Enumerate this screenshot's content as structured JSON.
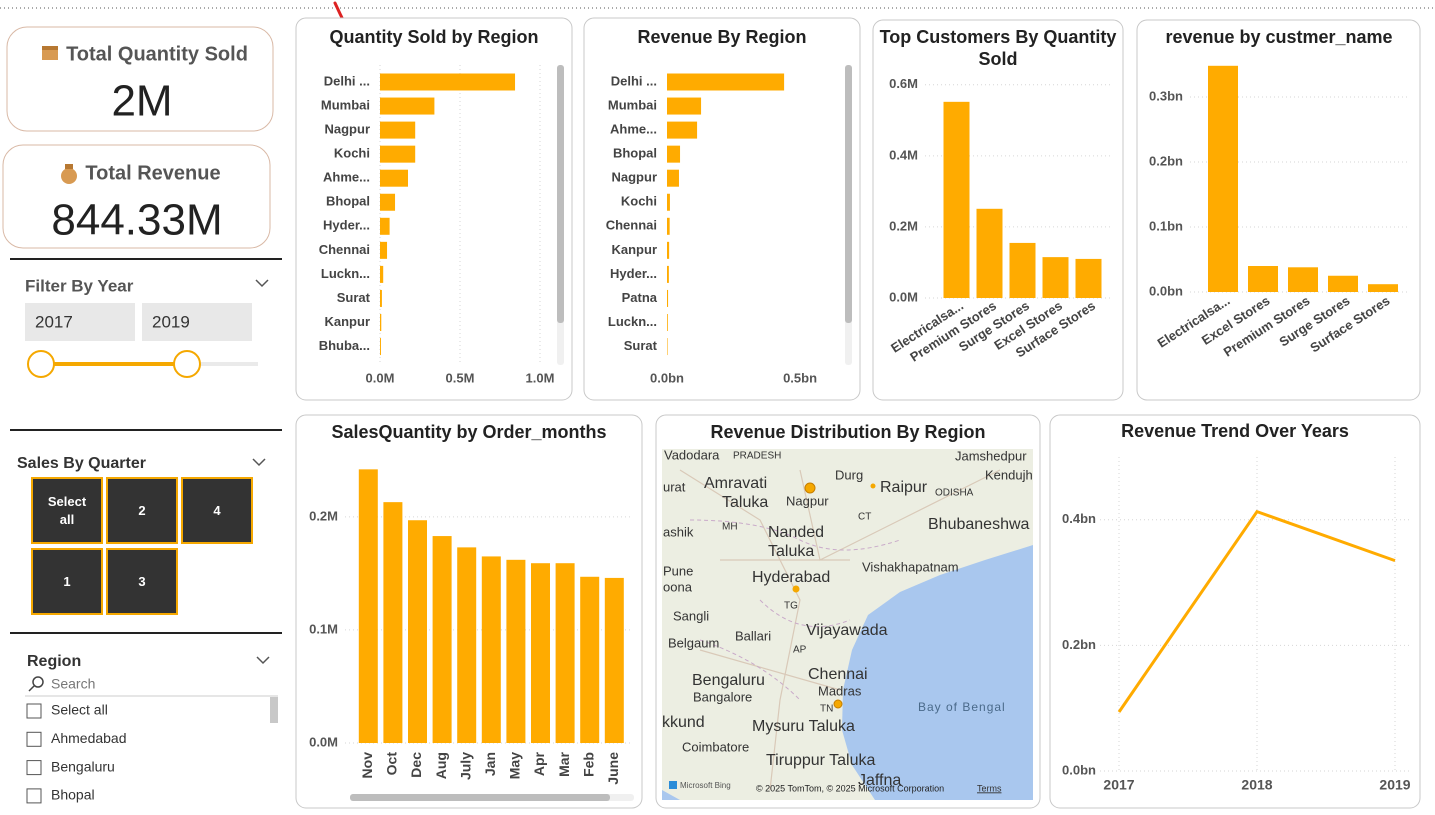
{
  "cards": [
    {
      "title": "Total Quantity Sold",
      "value": "2M"
    },
    {
      "title": "Total Revenue",
      "value": "844.33M"
    }
  ],
  "year_filter": {
    "title": "Filter By Year",
    "from": "2017",
    "to": "2019"
  },
  "quarter_slicer": {
    "title": "Sales By Quarter",
    "options": [
      "Select all",
      "2",
      "4",
      "1",
      "3"
    ]
  },
  "region_slicer": {
    "title": "Region",
    "search_placeholder": "Search",
    "options": [
      "Select all",
      "Ahmedabad",
      "Bengaluru",
      "Bhopal"
    ]
  },
  "map": {
    "title": "Revenue Distribution By Region",
    "labels": [
      "Vadodara",
      "PRADESH",
      "Durg",
      "Jamshedpur",
      "Kendujh",
      "Amravati",
      "Taluka",
      "Nagpur",
      "Raipur",
      "ODISHA",
      "urat",
      "MH",
      "Nanded",
      "Taluka",
      "CT",
      "Bhubaneshwa",
      "ashik",
      "Vishakhapatnam",
      "Pune",
      "Hyderabad",
      "oona",
      "TG",
      "Sangli",
      "Vijayawada",
      "Belgaum",
      "Ballari",
      "AP",
      "Chennai",
      "Madras",
      "Bengaluru",
      "Bangalore",
      "TN",
      "Bay of Bengal",
      "kkund",
      "Mysuru Taluka",
      "Coimbatore",
      "Tiruppur Taluka",
      "Jaffna"
    ],
    "provider": "Microsoft Bing",
    "attribution": "© 2025 TomTom, © 2025 Microsoft Corporation",
    "terms": "Terms"
  },
  "chart_data": [
    {
      "type": "bar",
      "orientation": "horizontal",
      "title": "Quantity Sold by Region",
      "color": "#ffab00",
      "grid": true,
      "categories": [
        "Delhi ...",
        "Mumbai",
        "Nagpur",
        "Kochi",
        "Ahme...",
        "Bhopal",
        "Hyder...",
        "Chennai",
        "Luckn...",
        "Surat",
        "Kanpur",
        "Bhuba..."
      ],
      "values": [
        0.844,
        0.34,
        0.22,
        0.22,
        0.175,
        0.094,
        0.06,
        0.044,
        0.02,
        0.012,
        0.008,
        0.006
      ],
      "xlim": [
        0,
        1.05
      ],
      "xticks": [
        {
          "value": 0,
          "label": "0.0M"
        },
        {
          "value": 0.5,
          "label": "0.5M"
        },
        {
          "value": 1,
          "label": "1.0M"
        }
      ]
    },
    {
      "type": "bar",
      "orientation": "horizontal",
      "title": "Revenue By Region",
      "color": "#ffab00",
      "grid": false,
      "categories": [
        "Delhi ...",
        "Mumbai",
        "Ahme...",
        "Bhopal",
        "Nagpur",
        "Kochi",
        "Chennai",
        "Kanpur",
        "Hyder...",
        "Patna",
        "Luckn...",
        "Surat"
      ],
      "values": [
        0.44,
        0.128,
        0.113,
        0.049,
        0.045,
        0.011,
        0.01,
        0.008,
        0.007,
        0.004,
        0.003,
        0.002
      ],
      "xlim": [
        0,
        0.65
      ],
      "xticks": [
        {
          "value": 0,
          "label": "0.0bn"
        },
        {
          "value": 0.5,
          "label": "0.5bn"
        }
      ]
    },
    {
      "type": "bar",
      "orientation": "vertical",
      "title": "Top Customers By Quantity Sold",
      "color": "#ffab00",
      "grid": true,
      "categories": [
        "Electricalsa...",
        "Premium Stores",
        "Surge Stores",
        "Excel Stores",
        "Surface Stores"
      ],
      "values": [
        0.552,
        0.251,
        0.155,
        0.115,
        0.11
      ],
      "ylim": [
        0,
        0.65
      ],
      "yticks": [
        {
          "value": 0,
          "label": "0.0M"
        },
        {
          "value": 0.2,
          "label": "0.2M"
        },
        {
          "value": 0.4,
          "label": "0.4M"
        },
        {
          "value": 0.6,
          "label": "0.6M"
        }
      ]
    },
    {
      "type": "bar",
      "orientation": "vertical",
      "title": "revenue by custmer_name",
      "color": "#ffab00",
      "grid": true,
      "categories": [
        "Electricalsa...",
        "Excel Stores",
        "Premium Stores",
        "Surge Stores",
        "Surface Stores"
      ],
      "values": [
        0.348,
        0.04,
        0.038,
        0.025,
        0.012
      ],
      "ylim": [
        0,
        0.36
      ],
      "yticks": [
        {
          "value": 0,
          "label": "0.0bn"
        },
        {
          "value": 0.1,
          "label": "0.1bn"
        },
        {
          "value": 0.2,
          "label": "0.2bn"
        },
        {
          "value": 0.3,
          "label": "0.3bn"
        }
      ]
    },
    {
      "type": "bar",
      "orientation": "vertical",
      "title": "SalesQuantity by Order_months",
      "color": "#ffab00",
      "grid": true,
      "categories": [
        "Nov",
        "Oct",
        "Dec",
        "Aug",
        "July",
        "Jan",
        "May",
        "Apr",
        "Mar",
        "Feb",
        "June"
      ],
      "values": [
        0.242,
        0.213,
        0.197,
        0.183,
        0.173,
        0.165,
        0.162,
        0.159,
        0.159,
        0.147,
        0.146
      ],
      "ylim": [
        0,
        0.26
      ],
      "yticks": [
        {
          "value": 0,
          "label": "0.0M"
        },
        {
          "value": 0.1,
          "label": "0.1M"
        },
        {
          "value": 0.2,
          "label": "0.2M"
        }
      ]
    },
    {
      "type": "line",
      "title": "Revenue Trend Over Years",
      "color": "#ffab00",
      "grid": true,
      "categories": [
        "2017",
        "2018",
        "2019"
      ],
      "values": [
        0.094,
        0.413,
        0.335
      ],
      "ylim": [
        0,
        0.5
      ],
      "yticks": [
        {
          "value": 0,
          "label": "0.0bn"
        },
        {
          "value": 0.2,
          "label": "0.2bn"
        },
        {
          "value": 0.4,
          "label": "0.4bn"
        }
      ]
    }
  ]
}
